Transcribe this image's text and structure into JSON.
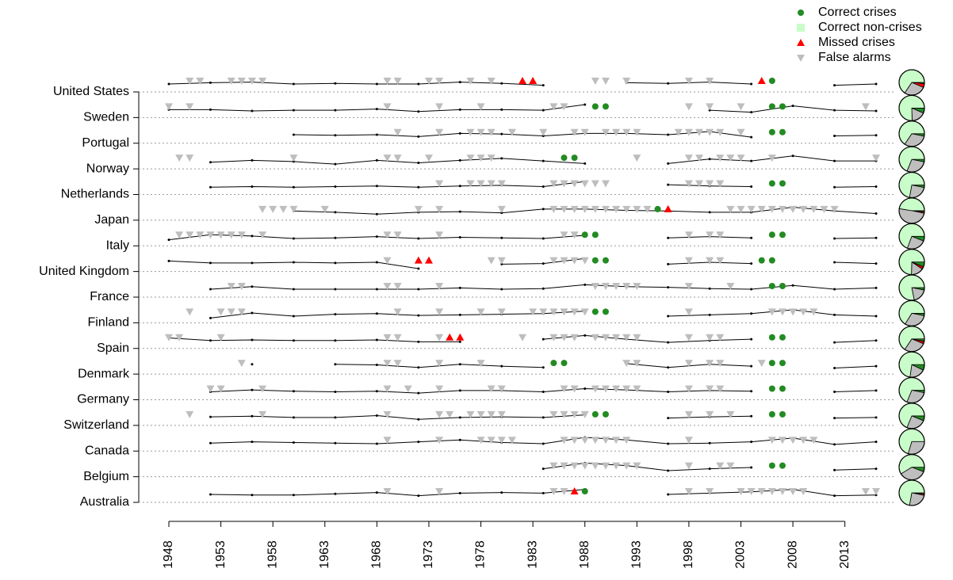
{
  "chart_data": {
    "type": "crisis-timeline",
    "xlim": [
      1948,
      2016
    ],
    "xticks": [
      1948,
      1953,
      1958,
      1963,
      1968,
      1973,
      1978,
      1983,
      1988,
      1993,
      1998,
      2003,
      2008,
      2013
    ],
    "line_x": [
      1948,
      1952,
      1956,
      1960,
      1964,
      1968,
      1972,
      1976,
      1980,
      1984,
      1988,
      1992,
      1996,
      2000,
      2004,
      2008,
      2012,
      2016
    ],
    "legend": [
      {
        "name": "Correct crises",
        "color": "#228b22"
      },
      {
        "name": "Correct non-crises",
        "color": "#c8fcc8"
      },
      {
        "name": "Missed crises",
        "color": "#ff0000"
      },
      {
        "name": "False alarms",
        "color": "#bebebe"
      }
    ],
    "countries": [
      {
        "name": "United States",
        "correct": [
          2006
        ],
        "missed": [
          1982,
          1983,
          2005
        ],
        "false": [
          1950,
          1951,
          1954,
          1955,
          1956,
          1957,
          1969,
          1970,
          1973,
          1974,
          1977,
          1979,
          1989,
          1990,
          1992,
          1998,
          2000
        ],
        "line": [
          0,
          0.2,
          0.3,
          0,
          0.1,
          0,
          0,
          0.3,
          0.1,
          -0.2,
          null,
          0.2,
          0.1,
          0.3,
          0,
          null,
          -0.2,
          0
        ],
        "pie": [
          1,
          40,
          3,
          17
        ]
      },
      {
        "name": "Sweden",
        "correct": [
          1989,
          1990,
          2006,
          2007
        ],
        "missed": [],
        "false": [
          1948,
          1950,
          1969,
          1974,
          1978,
          1985,
          1986,
          1998,
          2000,
          2003,
          2015
        ],
        "line": [
          0,
          0,
          -0.2,
          -0.1,
          -0.1,
          0.1,
          -0.3,
          0,
          0,
          -0.1,
          0.8,
          null,
          null,
          -0.1,
          -0.4,
          0.6,
          -0.1,
          -0.2
        ],
        "pie": [
          4,
          46,
          0,
          11
        ]
      },
      {
        "name": "Portugal",
        "correct": [
          2006,
          2007
        ],
        "missed": [],
        "false": [
          1970,
          1974,
          1977,
          1978,
          1979,
          1981,
          1984,
          1987,
          1988,
          1990,
          1991,
          1992,
          1993,
          1997,
          1998,
          1999,
          2000,
          2001,
          2003
        ],
        "line": [
          null,
          null,
          null,
          0.1,
          0,
          0.1,
          -0.2,
          0.3,
          0.2,
          -0.1,
          0.3,
          0.3,
          0.1,
          0.6,
          -0.3,
          null,
          -0.1,
          0
        ],
        "pie": [
          2,
          40,
          0,
          19
        ]
      },
      {
        "name": "Norway",
        "correct": [
          1986,
          1987
        ],
        "missed": [],
        "false": [
          1949,
          1950,
          1960,
          1969,
          1970,
          1973,
          1977,
          1978,
          1979,
          1993,
          1998,
          1999,
          2001,
          2002,
          2003,
          2006,
          2016
        ],
        "line": [
          null,
          -0.2,
          0.1,
          -0.1,
          -0.5,
          0.1,
          -0.3,
          0.1,
          0.4,
          0,
          -0.4,
          null,
          -0.4,
          0.3,
          0,
          0.8,
          0,
          0
        ],
        "pie": [
          2,
          42,
          0,
          17
        ]
      },
      {
        "name": "Netherlands",
        "correct": [
          2006,
          2007
        ],
        "missed": [],
        "false": [
          1974,
          1977,
          1978,
          1979,
          1980,
          1985,
          1986,
          1987,
          1988,
          1989,
          1990,
          1998,
          1999,
          2000,
          2001
        ],
        "line": [
          null,
          -0.1,
          0,
          -0.1,
          0,
          0.1,
          -0.1,
          0.1,
          0.2,
          0,
          0.8,
          null,
          0.3,
          0.1,
          0,
          null,
          -0.1,
          0
        ],
        "pie": [
          2,
          44,
          0,
          15
        ]
      },
      {
        "name": "Japan",
        "correct": [
          1995
        ],
        "missed": [
          1996
        ],
        "false": [
          1957,
          1958,
          1959,
          1960,
          1963,
          1972,
          1974,
          1980,
          1985,
          1986,
          1987,
          1988,
          1989,
          1990,
          1991,
          1992,
          1993,
          1994,
          2002,
          2003,
          2004,
          2005,
          2006,
          2007,
          2008,
          2009,
          2010,
          2011,
          2012
        ],
        "line": [
          null,
          null,
          null,
          0.2,
          0,
          -0.3,
          0,
          0.1,
          -0.1,
          0.5,
          0.5,
          0.3,
          0.2,
          0,
          0,
          0.8,
          0.2,
          -0.2
        ],
        "pie": [
          1,
          28,
          1,
          29
        ]
      },
      {
        "name": "Italy",
        "correct": [
          1988,
          1989,
          2006,
          2007
        ],
        "missed": [],
        "false": [
          1949,
          1950,
          1951,
          1952,
          1953,
          1954,
          1955,
          1957,
          1969,
          1970,
          1974,
          1986,
          1987,
          1998,
          2000,
          2001
        ],
        "line": [
          -0.3,
          0.5,
          0.3,
          -0.1,
          0,
          0.2,
          -0.1,
          0.1,
          0,
          -0.1,
          0.4,
          null,
          0,
          0.2,
          0,
          null,
          -0.1,
          0
        ],
        "pie": [
          4,
          45,
          0,
          16
        ]
      },
      {
        "name": "United Kingdom",
        "correct": [
          1989,
          1990,
          2005,
          2006
        ],
        "missed": [
          1972,
          1973
        ],
        "false": [
          1969,
          1979,
          1980,
          1985,
          1986,
          1987,
          1988,
          1998,
          2000,
          2001
        ],
        "line": [
          0.4,
          0.1,
          0.1,
          0.2,
          0.1,
          0.2,
          -0.8,
          null,
          -0.1,
          0,
          0.8,
          null,
          -0.1,
          0.2,
          0,
          null,
          0.2,
          0
        ],
        "pie": [
          4,
          47,
          2,
          10
        ]
      },
      {
        "name": "France",
        "correct": [
          2006,
          2007
        ],
        "missed": [],
        "false": [
          1954,
          1955,
          1969,
          1970,
          1974,
          1989,
          1990,
          1991,
          1992,
          1993,
          1998,
          2002
        ],
        "line": [
          null,
          0,
          0.4,
          0,
          0,
          0,
          0,
          0.2,
          0,
          0.1,
          0.7,
          0.4,
          0.3,
          0.1,
          0,
          0.6,
          0,
          0.2
        ],
        "pie": [
          2,
          50,
          0,
          12
        ]
      },
      {
        "name": "Finland",
        "correct": [
          1989,
          1990
        ],
        "missed": [],
        "false": [
          1950,
          1953,
          1954,
          1955,
          1970,
          1974,
          1978,
          1980,
          1983,
          1984,
          1985,
          1986,
          1987,
          1988,
          1998,
          2006,
          2007,
          2008,
          2009,
          2010
        ],
        "line": [
          null,
          -0.5,
          0.3,
          -0.2,
          0.1,
          0.2,
          -0.1,
          0,
          0.1,
          0.2,
          0.6,
          null,
          -0.2,
          0,
          0.2,
          0.8,
          0,
          -0.2
        ],
        "pie": [
          2,
          43,
          0,
          20
        ]
      },
      {
        "name": "Spain",
        "correct": [
          2006,
          2007
        ],
        "missed": [
          1975,
          1976
        ],
        "false": [
          1948,
          1949,
          1953,
          1969,
          1970,
          1974,
          1982,
          1985,
          1986,
          1987,
          1989,
          1990,
          1991,
          1992,
          1993,
          1998,
          2000,
          2001
        ],
        "line": [
          0.4,
          0,
          0.1,
          0,
          0,
          0.1,
          -0.2,
          -0.2,
          null,
          0.2,
          0.8,
          0.2,
          -0.3,
          0,
          0.2,
          null,
          -0.3,
          0
        ],
        "pie": [
          2,
          42,
          2,
          18
        ]
      },
      {
        "name": "Denmark",
        "correct": [
          1985,
          1986,
          2006,
          2007
        ],
        "missed": [],
        "false": [
          1955,
          1969,
          1970,
          1974,
          1978,
          1992,
          1993,
          1998,
          2000,
          2001,
          2005
        ],
        "line": [
          null,
          null,
          0.3,
          null,
          0.3,
          0.2,
          -0.2,
          0.3,
          0,
          -0.2,
          null,
          0.4,
          -0.2,
          0.3,
          0,
          null,
          -0.3,
          0
        ],
        "pie": [
          4,
          40,
          0,
          11
        ]
      },
      {
        "name": "Germany",
        "correct": [
          2006,
          2007
        ],
        "missed": [],
        "false": [
          1952,
          1953,
          1957,
          1969,
          1971,
          1974,
          1979,
          1980,
          1986,
          1987,
          1989,
          1990,
          1991,
          1992,
          1993,
          1998,
          2000,
          2001
        ],
        "line": [
          null,
          0,
          0.3,
          0.1,
          0,
          0.1,
          -0.2,
          0.2,
          0.2,
          0,
          0.5,
          0.3,
          0,
          0.2,
          0.1,
          null,
          0,
          0.2
        ],
        "pie": [
          2,
          44,
          0,
          18
        ]
      },
      {
        "name": "Switzerland",
        "correct": [
          1989,
          1990,
          2006,
          2007
        ],
        "missed": [],
        "false": [
          1950,
          1957,
          1969,
          1974,
          1975,
          1977,
          1978,
          1979,
          1980,
          1985,
          1986,
          1987,
          1988,
          1998,
          2000,
          2002
        ],
        "line": [
          null,
          0.1,
          0.2,
          0,
          0,
          0.3,
          -0.3,
          0,
          0.1,
          0,
          0.4,
          null,
          -0.1,
          0.1,
          0.2,
          null,
          -0.1,
          0
        ],
        "pie": [
          4,
          44,
          0,
          16
        ]
      },
      {
        "name": "Canada",
        "correct": [],
        "missed": [],
        "false": [
          1969,
          1974,
          1978,
          1979,
          1980,
          1981,
          1986,
          1987,
          1988,
          1989,
          1990,
          1991,
          1992,
          1998,
          2006,
          2007,
          2008,
          2009,
          2010
        ],
        "line": [
          null,
          0,
          0.2,
          0.1,
          0,
          -0.1,
          0.2,
          0.5,
          0.1,
          -0.1,
          0.9,
          0.5,
          -0.1,
          0,
          0.2,
          0.8,
          -0.2,
          0.2
        ],
        "pie": [
          0,
          45,
          0,
          19
        ]
      },
      {
        "name": "Belgium",
        "correct": [
          2006,
          2007
        ],
        "missed": [],
        "false": [
          1985,
          1986,
          1987,
          1988,
          1989,
          1990,
          1991,
          1992,
          1993,
          1998,
          2001,
          2002
        ],
        "line": [
          null,
          null,
          null,
          null,
          null,
          null,
          null,
          null,
          null,
          0,
          0.9,
          0.5,
          -0.3,
          0,
          0.2,
          null,
          -0.2,
          0
        ],
        "pie": [
          2,
          20,
          0,
          12
        ]
      },
      {
        "name": "Australia",
        "correct": [
          1988
        ],
        "missed": [
          1987
        ],
        "false": [
          1969,
          1974,
          1985,
          1986,
          1998,
          2000,
          2003,
          2004,
          2005,
          2006,
          2007,
          2008,
          2009,
          2015,
          2016
        ],
        "line": [
          null,
          0,
          -0.1,
          -0.1,
          0.1,
          0.3,
          -0.2,
          0.2,
          0.3,
          0.2,
          0.8,
          null,
          0,
          0.2,
          0.4,
          0.8,
          -0.2,
          -0.1
        ],
        "pie": [
          1,
          44,
          1,
          15
        ]
      }
    ]
  }
}
